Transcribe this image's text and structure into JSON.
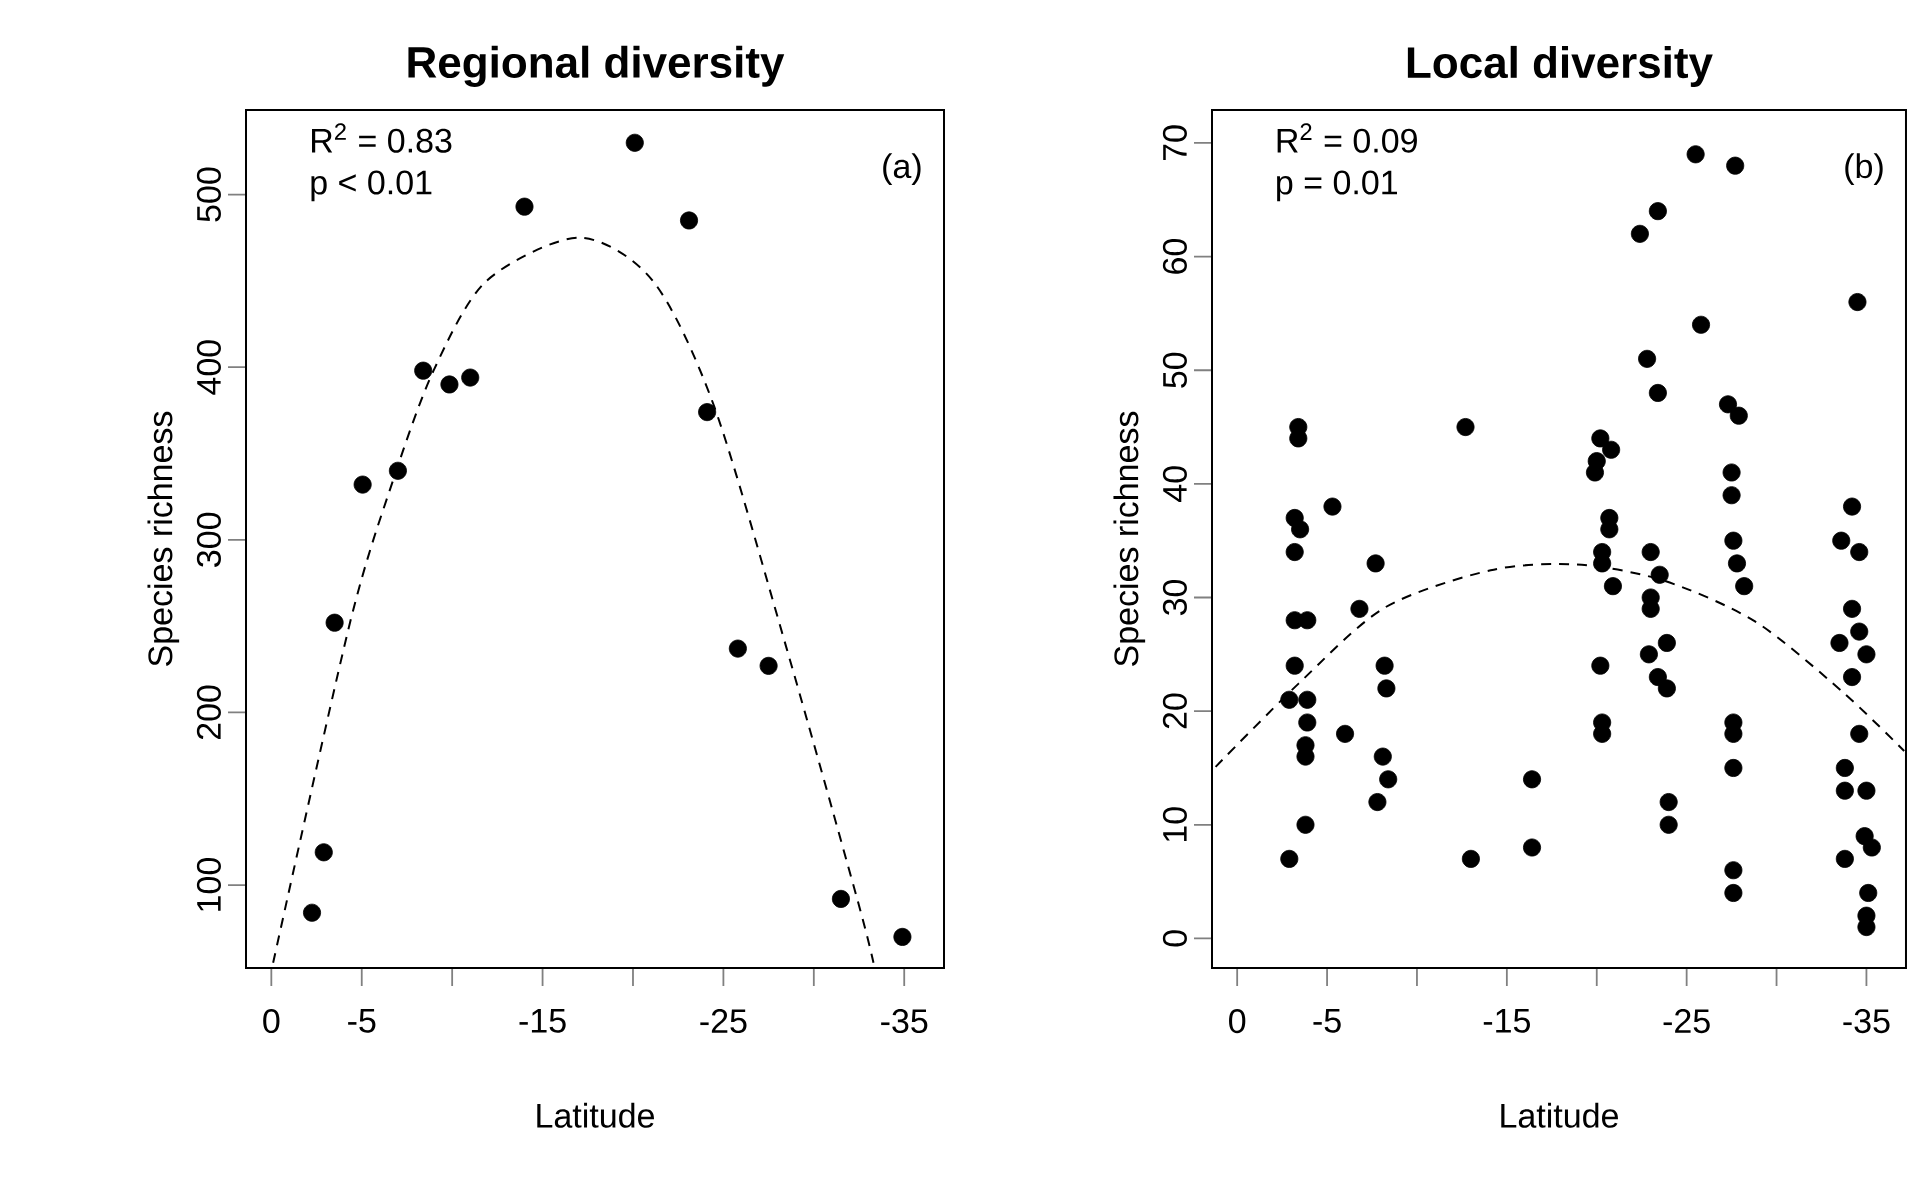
{
  "chart_data": [
    {
      "type": "scatter",
      "title": "Regional diversity",
      "xlabel": "Latitude",
      "ylabel": "Species richness",
      "xlim": [
        1.4,
        -37.2
      ],
      "ylim": [
        52,
        549
      ],
      "xticks": [
        0,
        -5,
        {
          "value": -10,
          "label": null
        },
        -15,
        {
          "value": -20,
          "label": null
        },
        -25,
        {
          "value": -30,
          "label": null
        },
        -35
      ],
      "yticks": [
        100,
        200,
        300,
        400,
        500
      ],
      "annotations": [
        "R$^{2}$ = 0.83",
        "p < 0.01",
        "(a)"
      ],
      "series": [
        {
          "marker": "circle",
          "color": "#000000",
          "x": [
            -2.25,
            -2.9,
            -3.5,
            -5.05,
            -7.0,
            -8.4,
            -9.85,
            -11.0,
            -14.0,
            -20.1,
            -23.1,
            -24.1,
            -25.8,
            -27.5,
            -31.5,
            -34.9
          ],
          "values": [
            84,
            119,
            252,
            332,
            340,
            398,
            390,
            394,
            493,
            530,
            485,
            374,
            237,
            227,
            92,
            70
          ]
        },
        {
          "type": "line",
          "line_style": "dashed",
          "color": "#000000",
          "x": [
            -0.1,
            -4.35,
            -6.75,
            -8.97,
            -11.9,
            -17.0,
            -21.1,
            -24.5,
            -28.5,
            -32.4,
            -33.3
          ],
          "values": [
            55,
            252,
            335,
            398,
            450,
            475,
            450,
            377,
            237,
            92,
            55
          ]
        }
      ]
    },
    {
      "type": "scatter",
      "title": "Local diversity",
      "xlabel": "Latitude",
      "ylabel": "Species richness",
      "xlim": [
        1.4,
        -37.2
      ],
      "ylim": [
        -2.6,
        72.9
      ],
      "xticks": [
        0,
        -5,
        {
          "value": -10,
          "label": null
        },
        -15,
        {
          "value": -20,
          "label": null
        },
        -25,
        {
          "value": -30,
          "label": null
        },
        -35
      ],
      "yticks": [
        0,
        10,
        20,
        30,
        40,
        50,
        60,
        70
      ],
      "annotations": [
        "R$^{2}$ = 0.09",
        "p = 0.01",
        "(b)"
      ],
      "series": [
        {
          "marker": "circle",
          "color": "#000000",
          "x": [
            -3.4,
            -3.4,
            -5.3,
            -3.2,
            -3.5,
            -12.7,
            -20.2,
            -20.8,
            -20.0,
            -19.9,
            -20.7,
            -20.7,
            -22.4,
            -23.4,
            -25.5,
            -27.7,
            -22.8,
            -23.4,
            -25.8,
            -27.3,
            -27.9,
            -27.5,
            -27.5,
            -34.5,
            -34.2,
            -3.2,
            -3.2,
            -3.9,
            -3.2,
            -2.9,
            -3.9,
            -3.9,
            -3.8,
            -3.8,
            -3.8,
            -2.9,
            -7.7,
            -6.8,
            -6.0,
            -8.2,
            -8.3,
            -8.1,
            -8.4,
            -7.8,
            -13.0,
            -16.4,
            -16.4,
            -20.3,
            -20.3,
            -20.9,
            -20.2,
            -20.3,
            -20.3,
            -23.0,
            -23.5,
            -23.0,
            -23.0,
            -22.9,
            -23.9,
            -23.4,
            -23.9,
            -24.0,
            -24.0,
            -27.6,
            -27.8,
            -28.2,
            -27.6,
            -27.6,
            -27.6,
            -27.6,
            -27.6,
            -33.6,
            -34.6,
            -34.2,
            -33.5,
            -34.6,
            -35.0,
            -34.2,
            -34.6,
            -33.8,
            -33.8,
            -35.0,
            -33.8,
            -34.9,
            -35.3,
            -35.1,
            -35.0,
            -35.0
          ],
          "values": [
            45,
            44,
            38,
            37,
            36,
            45,
            44,
            43,
            42,
            41,
            37,
            36,
            62,
            64,
            69,
            68,
            51,
            48,
            54,
            47,
            46,
            41,
            39,
            56,
            38,
            34,
            28,
            28,
            24,
            21,
            21,
            19,
            17,
            16,
            10,
            7,
            33,
            29,
            18,
            24,
            22,
            16,
            14,
            12,
            7,
            14,
            8,
            34,
            33,
            31,
            24,
            19,
            18,
            34,
            32,
            30,
            29,
            25,
            26,
            23,
            22,
            12,
            10,
            35,
            33,
            31,
            19,
            18,
            15,
            6,
            4,
            35,
            34,
            29,
            26,
            27,
            25,
            23,
            18,
            15,
            13,
            13,
            7,
            9,
            8,
            4,
            2,
            1
          ]
        },
        {
          "type": "line",
          "line_style": "dashed",
          "color": "#000000",
          "x": [
            1.2,
            -3.4,
            -8.2,
            -14.1,
            -18.9,
            -23.7,
            -28.8,
            -33.6,
            -37.1
          ],
          "values": [
            15.1,
            22.4,
            29.1,
            32.4,
            32.9,
            31.5,
            27.9,
            21.8,
            16.5
          ]
        }
      ]
    }
  ]
}
